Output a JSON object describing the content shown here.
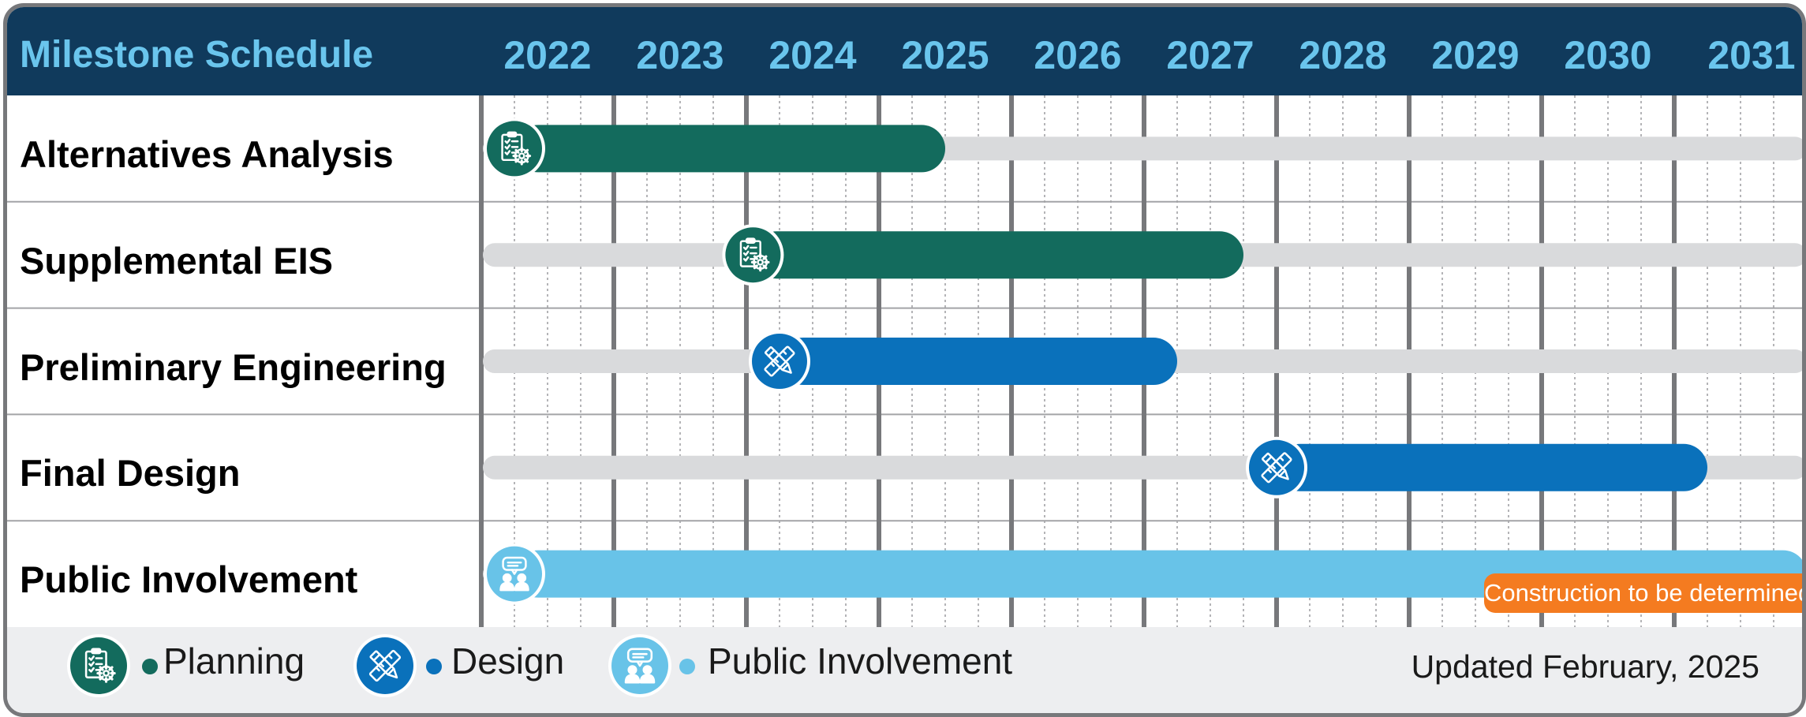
{
  "header": {
    "title": "Milestone Schedule"
  },
  "chart_data": {
    "type": "gantt",
    "title": "Milestone Schedule",
    "years": [
      "2022",
      "2023",
      "2024",
      "2025",
      "2026",
      "2027",
      "2028",
      "2029",
      "2030",
      "2031"
    ],
    "x_range": [
      2022.0,
      2032.0
    ],
    "categories": [
      "Alternatives Analysis",
      "Supplemental EIS",
      "Preliminary Engineering",
      "Final Design",
      "Public Involvement"
    ],
    "tasks": [
      {
        "name": "Alternatives Analysis",
        "phase": "Planning",
        "start": 2022.25,
        "end": 2025.5
      },
      {
        "name": "Supplemental EIS",
        "phase": "Planning",
        "start": 2024.05,
        "end": 2027.75
      },
      {
        "name": "Preliminary Engineering",
        "phase": "Design",
        "start": 2024.25,
        "end": 2027.25
      },
      {
        "name": "Final Design",
        "phase": "Design",
        "start": 2028.0,
        "end": 2031.25
      },
      {
        "name": "Public Involvement",
        "phase": "Public Involvement",
        "start": 2022.25,
        "end": 2032.0
      }
    ],
    "annotation": "Construction to be determined",
    "legend": [
      {
        "label": "Planning",
        "color": "#136b5d",
        "icon": "clipboard-gear-icon"
      },
      {
        "label": "Design",
        "color": "#0a71bb",
        "icon": "pencil-ruler-icon"
      },
      {
        "label": "Public Involvement",
        "color": "#68c3e8",
        "icon": "people-chat-icon"
      }
    ],
    "legend_position": "bottom",
    "grid": true
  },
  "footer": {
    "updated": "Updated February, 2025"
  },
  "colors": {
    "header_bg": "#103a5c",
    "header_text": "#6ac5ed",
    "track": "#d9dadc",
    "annotation": "#f47b20",
    "planning": "#136b5d",
    "design": "#0a71bb",
    "public": "#68c3e8"
  }
}
